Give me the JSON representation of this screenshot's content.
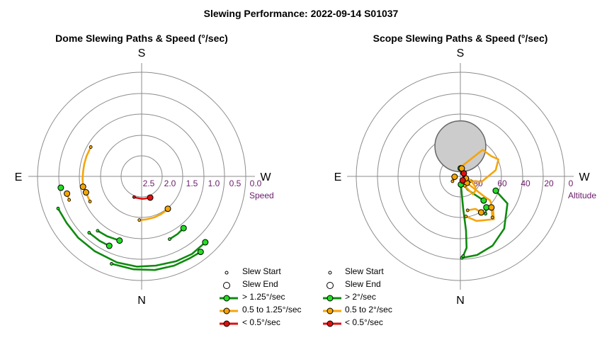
{
  "figure_title": "Slewing Performance: 2022-09-14 S01037",
  "colors": {
    "fast": "#0f8a0f",
    "fast_fill": "#22dd22",
    "medium": "#f5a50a",
    "medium_fill": "#f5a500",
    "slow": "#dd1111",
    "slow_fill": "#dd1111",
    "grid": "#8c8c8c",
    "tick_label": "#6a1b6a",
    "horizon_fill": "#cccccc"
  },
  "chart_data": [
    {
      "type": "polar-path",
      "title": "Dome Slewing Paths & Speed (°/sec)",
      "compass": {
        "top": "S",
        "bottom": "N",
        "left": "E",
        "right": "W"
      },
      "radial_axis": {
        "label": "Speed",
        "ticks": [
          "2.5",
          "2.0",
          "1.5",
          "1.0",
          "0.5",
          "0.0"
        ],
        "values": [
          2.5,
          2.0,
          1.5,
          1.0,
          0.5,
          0.0
        ],
        "range": [
          0,
          3
        ]
      },
      "legend": [
        {
          "label": "Slew Start",
          "kind": "start"
        },
        {
          "label": "Slew End",
          "kind": "end"
        },
        {
          "label": "> 1.25°/sec",
          "kind": "fast"
        },
        {
          "label": "0.5 to 1.25°/sec",
          "kind": "medium"
        },
        {
          "label": "< 0.5°/sec",
          "kind": "slow"
        }
      ],
      "paths": [
        {
          "speed": "slow",
          "path": [
            [
              200,
              0.53
            ],
            [
              193,
              0.53
            ],
            [
              186,
              0.53
            ],
            [
              179,
              0.54
            ],
            [
              172,
              0.54
            ],
            [
              165,
              0.54
            ],
            [
              158,
              0.55
            ]
          ]
        },
        {
          "speed": "medium",
          "path": [
            [
              183,
              1.05
            ],
            [
              174,
              1.04
            ],
            [
              163,
              1.03
            ],
            [
              153,
              1.02
            ],
            [
              146,
              1.01
            ],
            [
              141,
              1.0
            ]
          ]
        },
        {
          "speed": "medium",
          "path": [
            [
              300,
              1.41
            ],
            [
              290,
              1.41
            ],
            [
              282,
              1.41
            ],
            [
              275,
              1.41
            ],
            [
              268,
              1.42
            ],
            [
              260,
              1.43
            ]
          ]
        },
        {
          "speed": "medium",
          "path": [
            [
              244,
              1.38
            ],
            [
              249,
              1.38
            ],
            [
              254,
              1.39
            ]
          ]
        },
        {
          "speed": "medium",
          "path": [
            [
              252,
              1.83
            ],
            [
              257,
              1.84
            ]
          ]
        },
        {
          "speed": "fast",
          "path": [
            [
              249,
              2.15
            ],
            [
              238,
              2.12
            ],
            [
              226,
              2.12
            ],
            [
              212,
              2.12
            ],
            [
              196,
              2.15
            ],
            [
              183,
              2.17
            ],
            [
              171,
              2.17
            ],
            [
              158,
              2.2
            ],
            [
              147,
              2.22
            ],
            [
              136,
              2.2
            ]
          ]
        },
        {
          "speed": "fast",
          "path": [
            [
              219,
              1.68
            ],
            [
              210,
              1.66
            ],
            [
              199,
              1.63
            ]
          ]
        },
        {
          "speed": "fast",
          "path": [
            [
              156,
              1.65
            ],
            [
              148,
              1.63
            ],
            [
              141,
              1.6
            ]
          ]
        },
        {
          "speed": "fast",
          "path": [
            [
              262,
              1.95
            ],
            [
              262,
              1.96
            ]
          ]
        },
        {
          "speed": "fast",
          "path": [
            [
              199,
              2.22
            ],
            [
              185,
              2.24
            ],
            [
              172,
              2.27
            ],
            [
              160,
              2.28
            ],
            [
              150,
              2.28
            ],
            [
              142,
              2.3
            ]
          ]
        },
        {
          "speed": "fast",
          "path": [
            [
              223,
              1.85
            ],
            [
              213,
              1.85
            ],
            [
              205,
              1.84
            ]
          ]
        }
      ]
    },
    {
      "type": "polar-path",
      "title": "Scope Slewing Paths & Speed (°/sec)",
      "compass": {
        "top": "S",
        "bottom": "N",
        "left": "E",
        "right": "W"
      },
      "radial_axis": {
        "label": "Altitude",
        "ticks": [
          "80",
          "60",
          "40",
          "20",
          "0"
        ],
        "values": [
          80,
          60,
          40,
          20,
          0
        ],
        "range": [
          90,
          0
        ]
      },
      "legend": [
        {
          "label": "Slew Start",
          "kind": "start"
        },
        {
          "label": "Slew End",
          "kind": "end"
        },
        {
          "label": "> 2°/sec",
          "kind": "fast"
        },
        {
          "label": "0.5 to 2°/sec",
          "kind": "medium"
        },
        {
          "label": "< 0.5°/sec",
          "kind": "slow"
        }
      ],
      "horizon_limit": {
        "az": 0,
        "alt_center": 64,
        "alt_radius": 22
      },
      "paths": [
        {
          "speed": "fast",
          "path": [
            [
              179,
              19.5
            ],
            [
              168,
              20.5
            ],
            [
              155,
              24
            ],
            [
              140,
              31
            ],
            [
              120,
              43
            ],
            [
              112,
              57
            ]
          ]
        },
        {
          "speed": "fast",
          "path": [
            [
              178,
              21
            ],
            [
              175,
              28
            ],
            [
              174,
              43
            ],
            [
              175,
              63
            ],
            [
              176,
              83
            ]
          ]
        },
        {
          "speed": "fast",
          "path": [
            [
              162,
              85
            ],
            [
              152,
              77
            ],
            [
              136,
              61
            ]
          ]
        },
        {
          "speed": "fast",
          "path": [
            [
              146,
              51
            ],
            [
              140,
              55
            ]
          ]
        },
        {
          "speed": "fast",
          "path": [
            [
              24,
              87
            ],
            [
              10,
              85
            ],
            [
              3,
              83
            ]
          ]
        },
        {
          "speed": "medium",
          "path": [
            [
              114,
              80
            ],
            [
              104,
              71
            ],
            [
              80,
              59
            ],
            [
              66,
              54
            ],
            [
              57,
              58
            ],
            [
              40,
              60
            ],
            [
              14,
              80
            ],
            [
              10,
              83
            ]
          ]
        },
        {
          "speed": "medium",
          "path": [
            [
              172,
              55
            ],
            [
              160,
              49
            ],
            [
              142,
              43
            ],
            [
              135,
              50
            ],
            [
              129,
              57
            ],
            [
              130,
              62
            ],
            [
              135,
              82
            ]
          ]
        },
        {
          "speed": "medium",
          "path": [
            [
              155,
              81
            ],
            [
              145,
              71
            ],
            [
              135,
              72
            ],
            [
              125,
              74
            ],
            [
              112,
              80
            ],
            [
              100,
              84
            ],
            [
              110,
              85
            ]
          ]
        },
        {
          "speed": "medium",
          "path": [
            [
              168,
              60
            ],
            [
              155,
              59
            ],
            [
              150,
              54
            ]
          ]
        },
        {
          "speed": "medium",
          "path": [
            [
              142,
              45
            ],
            [
              135,
              52
            ]
          ]
        },
        {
          "speed": "medium",
          "path": [
            [
              238,
              82
            ],
            [
              250,
              85
            ],
            [
              266,
              85
            ]
          ]
        },
        {
          "speed": "slow",
          "path": [
            [
              160,
              86
            ],
            [
              150,
              86
            ]
          ]
        },
        {
          "speed": "slow",
          "path": [
            [
              80,
              87
            ],
            [
              60,
              87
            ],
            [
              49,
              86
            ]
          ]
        }
      ]
    }
  ]
}
